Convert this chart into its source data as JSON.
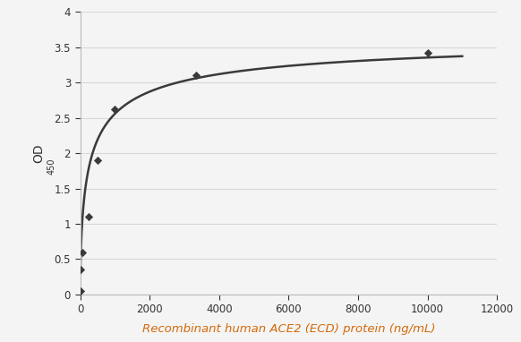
{
  "scatter_x": [
    0,
    16,
    63,
    250,
    500,
    1000,
    3333,
    10000
  ],
  "scatter_y": [
    0.05,
    0.35,
    0.6,
    1.1,
    1.9,
    2.62,
    3.1,
    3.42
  ],
  "xlabel": "Recombinant human ACE2 (ECD) protein (ng/mL)",
  "ylabel_main": "OD",
  "ylabel_sub": "450",
  "xlabel_color": "#d4690a",
  "xlim": [
    0,
    12000
  ],
  "ylim": [
    0,
    4
  ],
  "xticks": [
    0,
    2000,
    4000,
    6000,
    8000,
    10000,
    12000
  ],
  "yticks": [
    0,
    0.5,
    1.0,
    1.5,
    2.0,
    2.5,
    3.0,
    3.5,
    4.0
  ],
  "scatter_color": "#3a3a3a",
  "line_color": "#3a3a3a",
  "background_color": "#f4f4f4",
  "grid_color": "#d8d8d8",
  "tick_label_color": "#333333",
  "curve_Vmax": 3.72,
  "curve_K": 280,
  "curve_n": 0.62
}
